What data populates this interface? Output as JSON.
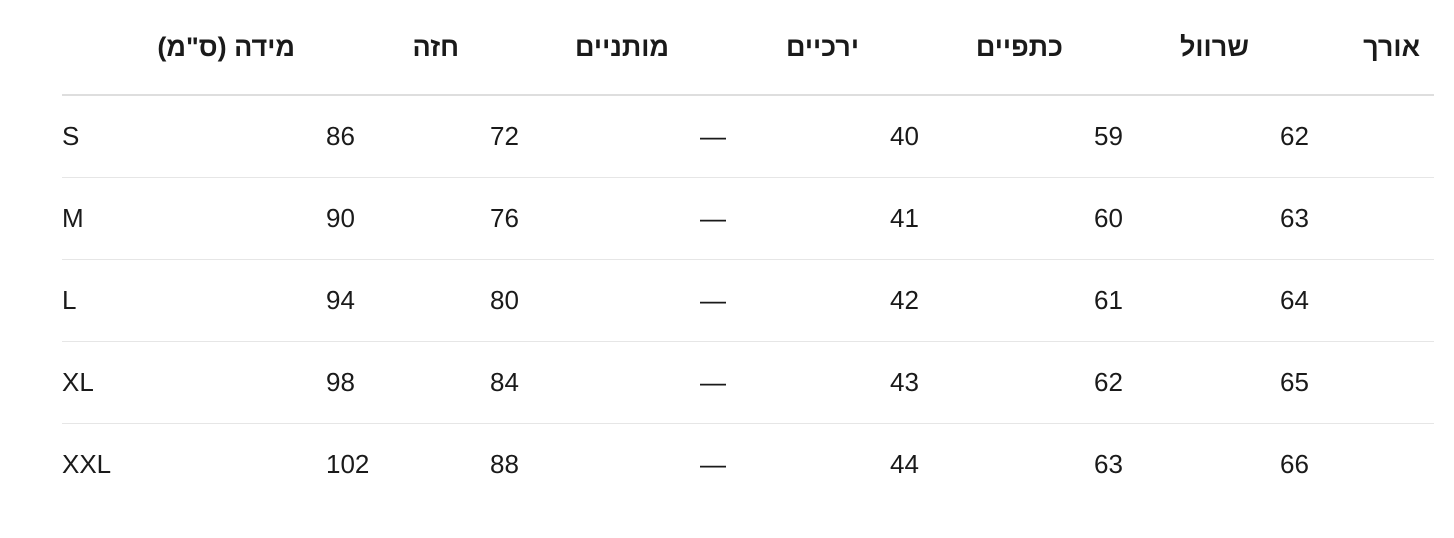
{
  "headers": [
    "מידה (ס\"מ)",
    "חזה",
    "מותניים",
    "ירכיים",
    "כתפיים",
    "שרוול",
    "אורך"
  ],
  "rows": [
    [
      "S",
      "86",
      "72",
      "—",
      "40",
      "59",
      "62"
    ],
    [
      "M",
      "90",
      "76",
      "—",
      "41",
      "60",
      "63"
    ],
    [
      "L",
      "94",
      "80",
      "—",
      "42",
      "61",
      "64"
    ],
    [
      "XL",
      "98",
      "84",
      "—",
      "43",
      "62",
      "65"
    ],
    [
      "XXL",
      "102",
      "88",
      "—",
      "44",
      "63",
      "66"
    ]
  ]
}
